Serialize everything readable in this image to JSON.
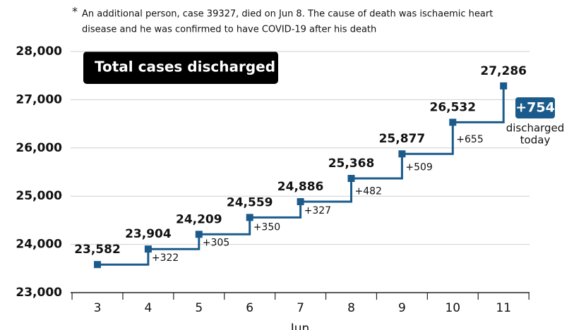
{
  "chart_data": {
    "type": "step",
    "title": "Total cases discharged",
    "footnote_mark": "*",
    "footnote": [
      "An additional person, case 39327, died on Jun 8. The cause of death was ischaemic heart",
      "disease and he was confirmed to have COVID-19 after his death"
    ],
    "x_label": "Jun",
    "categories": [
      "3",
      "4",
      "5",
      "6",
      "7",
      "8",
      "9",
      "10",
      "11"
    ],
    "values": [
      23582,
      23904,
      24209,
      24559,
      24886,
      25368,
      25877,
      26532,
      27286
    ],
    "value_labels": [
      "23,582",
      "23,904",
      "24,209",
      "24,559",
      "24,886",
      "25,368",
      "25,877",
      "26,532",
      "27,286"
    ],
    "step_labels": [
      "+322",
      "+305",
      "+350",
      "+327",
      "+482",
      "+509",
      "+655"
    ],
    "highlight": "+754",
    "highlight_caption": [
      "discharged",
      "today"
    ],
    "color": "#1b5b8c",
    "ylim": [
      23000,
      28000
    ],
    "yticks": [
      {
        "value": 23000,
        "label": "23,000"
      },
      {
        "value": 24000,
        "label": "24,000"
      },
      {
        "value": 25000,
        "label": "25,000"
      },
      {
        "value": 26000,
        "label": "26,000"
      },
      {
        "value": 27000,
        "label": "27,000"
      },
      {
        "value": 28000,
        "label": "28,000"
      }
    ],
    "grid": true
  }
}
